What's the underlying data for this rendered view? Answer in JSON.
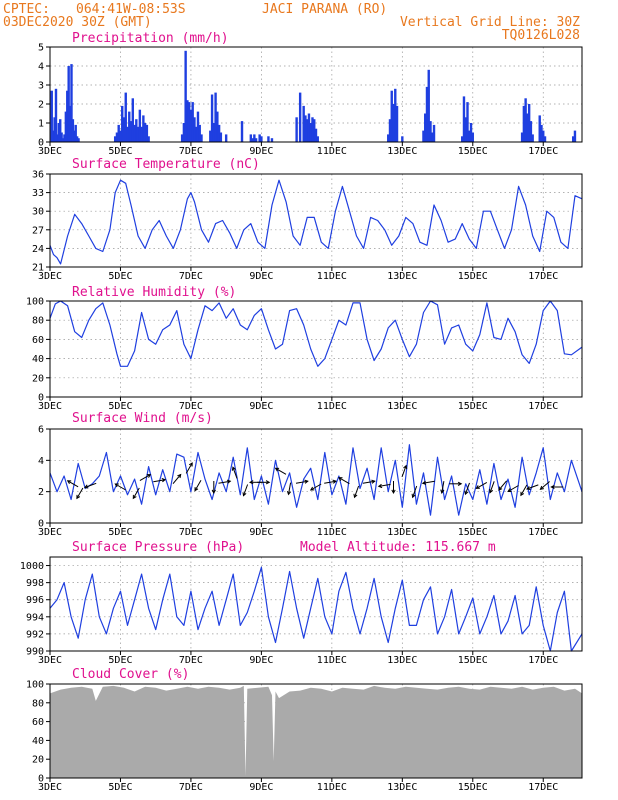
{
  "header": {
    "source": "CPTEC:",
    "coordinates": "064:41W-08:53S",
    "station": "JACI PARANA (RO)",
    "run": "03DEC2020 30Z (GMT)",
    "grid_note": "Vertical Grid Line: 30Z",
    "model_code": "TQ0126L028",
    "color": "#e8781e"
  },
  "colors": {
    "series": "#1f3fe0",
    "title": "#e0118e",
    "cloud": "#aaaaaa",
    "grid": "#999999"
  },
  "x_axis": {
    "tick_labels": [
      "3DEC",
      "5DEC",
      "7DEC",
      "9DEC",
      "11DEC",
      "13DEC",
      "15DEC",
      "17DEC"
    ],
    "tick_days": [
      3,
      5,
      7,
      9,
      11,
      13,
      15,
      17
    ],
    "range_days": [
      3,
      18.1
    ]
  },
  "chart_data": [
    {
      "type": "bar",
      "title": "Precipitation (mm/h)",
      "ylim": [
        0,
        5
      ],
      "yticks": [
        0,
        1,
        2,
        3,
        4,
        5
      ],
      "days": [
        3.05,
        3.09,
        3.13,
        3.17,
        3.21,
        3.25,
        3.29,
        3.33,
        3.37,
        3.41,
        3.45,
        3.49,
        3.53,
        3.57,
        3.61,
        3.65,
        3.69,
        3.73,
        3.77,
        3.81,
        4.85,
        4.9,
        4.95,
        5.0,
        5.05,
        5.1,
        5.15,
        5.2,
        5.25,
        5.3,
        5.35,
        5.4,
        5.45,
        5.5,
        5.55,
        5.6,
        5.65,
        5.7,
        5.75,
        5.8,
        6.75,
        6.8,
        6.85,
        6.9,
        6.95,
        7.0,
        7.05,
        7.1,
        7.15,
        7.2,
        7.25,
        7.3,
        7.55,
        7.6,
        7.65,
        7.7,
        7.75,
        7.8,
        7.85,
        8.0,
        8.45,
        8.7,
        8.75,
        8.8,
        8.85,
        8.95,
        9.0,
        9.2,
        9.3,
        10.0,
        10.1,
        10.2,
        10.25,
        10.3,
        10.35,
        10.4,
        10.45,
        10.5,
        10.55,
        10.6,
        12.6,
        12.65,
        12.7,
        12.75,
        12.8,
        12.85,
        13.0,
        13.6,
        13.65,
        13.7,
        13.75,
        13.8,
        13.85,
        13.9,
        14.7,
        14.75,
        14.8,
        14.85,
        14.9,
        14.95,
        15.0,
        16.4,
        16.45,
        16.5,
        16.55,
        16.6,
        16.65,
        16.7,
        16.9,
        16.95,
        17.0,
        17.05,
        17.85,
        17.9
      ],
      "values": [
        2.7,
        0.6,
        1.3,
        2.8,
        0.4,
        1.0,
        1.2,
        0.5,
        0.2,
        0.4,
        1.6,
        2.7,
        4.0,
        1.9,
        4.1,
        1.2,
        0.6,
        0.9,
        0.3,
        0.2,
        0.3,
        0.5,
        0.9,
        0.6,
        1.9,
        1.3,
        2.6,
        0.8,
        1.6,
        1.1,
        2.3,
        0.9,
        1.2,
        0.8,
        1.7,
        0.8,
        1.4,
        1.0,
        0.9,
        0.3,
        0.4,
        1.0,
        4.8,
        2.2,
        2.1,
        1.7,
        2.1,
        1.3,
        0.8,
        1.6,
        0.9,
        0.4,
        0.6,
        2.5,
        1.0,
        2.6,
        1.6,
        0.9,
        0.5,
        0.4,
        1.1,
        0.4,
        0.2,
        0.4,
        0.2,
        0.4,
        0.3,
        0.3,
        0.2,
        1.3,
        2.6,
        1.9,
        1.4,
        1.2,
        1.5,
        1.0,
        1.3,
        1.2,
        0.7,
        0.3,
        0.4,
        1.2,
        2.7,
        2.0,
        2.8,
        1.9,
        0.3,
        0.6,
        1.5,
        2.9,
        3.8,
        1.1,
        0.5,
        0.9,
        0.3,
        2.4,
        1.3,
        2.1,
        0.6,
        1.0,
        0.5,
        0.5,
        1.9,
        2.3,
        1.5,
        2.0,
        1.1,
        0.4,
        1.4,
        0.9,
        0.6,
        0.3,
        0.3,
        0.6
      ]
    },
    {
      "type": "line",
      "title": "Surface Temperature (nC)",
      "ylim": [
        21,
        36
      ],
      "yticks": [
        21,
        24,
        27,
        30,
        33,
        36
      ],
      "days": [
        3,
        3.1,
        3.2,
        3.3,
        3.5,
        3.7,
        3.9,
        4.1,
        4.3,
        4.5,
        4.7,
        4.85,
        5.0,
        5.15,
        5.3,
        5.5,
        5.7,
        5.9,
        6.1,
        6.3,
        6.5,
        6.7,
        6.9,
        7.0,
        7.1,
        7.3,
        7.5,
        7.7,
        7.9,
        8.1,
        8.3,
        8.5,
        8.7,
        8.9,
        9.1,
        9.3,
        9.5,
        9.7,
        9.9,
        10.1,
        10.3,
        10.5,
        10.7,
        10.9,
        11.1,
        11.3,
        11.5,
        11.7,
        11.9,
        12.1,
        12.3,
        12.5,
        12.7,
        12.9,
        13.1,
        13.3,
        13.5,
        13.7,
        13.9,
        14.1,
        14.3,
        14.5,
        14.7,
        14.9,
        15.1,
        15.3,
        15.5,
        15.7,
        15.9,
        16.1,
        16.3,
        16.5,
        16.7,
        16.9,
        17.1,
        17.3,
        17.5,
        17.7,
        17.9,
        18.1
      ],
      "values": [
        24.5,
        23.0,
        22.5,
        21.5,
        26,
        29.5,
        28,
        26,
        24,
        23.5,
        27,
        33,
        35,
        34.5,
        31,
        26,
        24,
        27,
        28.5,
        26,
        24,
        27,
        32,
        33,
        31.5,
        27,
        25,
        28,
        28.5,
        26.5,
        24,
        27,
        28,
        25,
        24,
        31,
        35,
        31.5,
        26,
        24.5,
        29,
        29,
        25,
        24,
        30,
        34,
        30,
        26,
        24,
        29,
        28.5,
        27,
        24.5,
        26,
        29,
        28,
        25,
        24.5,
        31,
        28.5,
        25,
        25.5,
        28,
        25.5,
        24,
        30,
        30,
        27,
        24,
        27,
        34,
        31,
        26,
        23.5,
        30,
        29,
        25,
        24,
        32.5,
        32
      ]
    },
    {
      "type": "line",
      "title": "Relative Humidity (%)",
      "ylim": [
        0,
        100
      ],
      "yticks": [
        0,
        20,
        40,
        60,
        80,
        100
      ],
      "days": [
        3,
        3.15,
        3.3,
        3.5,
        3.7,
        3.9,
        4.1,
        4.3,
        4.5,
        4.7,
        4.9,
        5.0,
        5.2,
        5.4,
        5.6,
        5.8,
        6.0,
        6.2,
        6.4,
        6.6,
        6.8,
        7.0,
        7.2,
        7.4,
        7.6,
        7.8,
        8.0,
        8.2,
        8.4,
        8.6,
        8.8,
        9.0,
        9.2,
        9.4,
        9.6,
        9.8,
        10.0,
        10.2,
        10.4,
        10.6,
        10.8,
        11.0,
        11.2,
        11.4,
        11.6,
        11.8,
        12.0,
        12.2,
        12.4,
        12.6,
        12.8,
        13.0,
        13.2,
        13.4,
        13.6,
        13.8,
        14.0,
        14.2,
        14.4,
        14.6,
        14.8,
        15.0,
        15.2,
        15.4,
        15.6,
        15.8,
        16.0,
        16.2,
        16.4,
        16.6,
        16.8,
        17.0,
        17.2,
        17.4,
        17.6,
        17.8,
        18.1
      ],
      "values": [
        82,
        97,
        100,
        95,
        68,
        62,
        80,
        92,
        98,
        75,
        45,
        32,
        32,
        48,
        88,
        60,
        55,
        70,
        75,
        90,
        55,
        40,
        70,
        95,
        90,
        98,
        82,
        92,
        75,
        70,
        85,
        92,
        70,
        50,
        55,
        90,
        92,
        75,
        50,
        32,
        40,
        60,
        80,
        75,
        98,
        98,
        60,
        38,
        50,
        72,
        80,
        60,
        42,
        55,
        88,
        100,
        96,
        55,
        72,
        75,
        55,
        48,
        65,
        98,
        62,
        60,
        82,
        68,
        44,
        35,
        55,
        90,
        100,
        90,
        45,
        44,
        52
      ]
    },
    {
      "type": "line",
      "title": "Surface Wind (m/s)",
      "ylim": [
        0,
        6
      ],
      "yticks": [
        0,
        2,
        4,
        6
      ],
      "days": [
        3,
        3.2,
        3.4,
        3.6,
        3.8,
        4.0,
        4.2,
        4.4,
        4.6,
        4.8,
        5.0,
        5.2,
        5.4,
        5.6,
        5.8,
        6.0,
        6.2,
        6.4,
        6.6,
        6.8,
        7.0,
        7.2,
        7.4,
        7.6,
        7.8,
        8.0,
        8.2,
        8.4,
        8.6,
        8.8,
        9.0,
        9.2,
        9.4,
        9.6,
        9.8,
        10.0,
        10.2,
        10.4,
        10.6,
        10.8,
        11.0,
        11.2,
        11.4,
        11.6,
        11.8,
        12.0,
        12.2,
        12.4,
        12.6,
        12.8,
        13.0,
        13.2,
        13.4,
        13.6,
        13.8,
        14.0,
        14.2,
        14.4,
        14.6,
        14.8,
        15.0,
        15.2,
        15.4,
        15.6,
        15.8,
        16.0,
        16.2,
        16.4,
        16.6,
        16.8,
        17.0,
        17.2,
        17.4,
        17.6,
        17.8,
        18.1
      ],
      "values": [
        3.2,
        2.0,
        3.0,
        1.5,
        3.8,
        2.2,
        2.5,
        3.0,
        4.5,
        2.0,
        3.0,
        1.8,
        2.8,
        1.2,
        3.6,
        1.8,
        3.4,
        2.0,
        4.4,
        4.2,
        2.0,
        4.5,
        2.8,
        1.5,
        3.2,
        2.0,
        4.2,
        1.8,
        4.8,
        1.5,
        3.0,
        1.2,
        4.0,
        2.0,
        3.2,
        1.0,
        2.8,
        3.5,
        1.5,
        4.5,
        1.8,
        3.0,
        1.2,
        4.8,
        2.2,
        3.5,
        1.5,
        4.8,
        2.0,
        4.0,
        1.0,
        5.0,
        1.2,
        3.2,
        0.5,
        4.2,
        1.5,
        3.0,
        0.5,
        2.5,
        1.5,
        3.4,
        1.2,
        3.8,
        1.5,
        2.8,
        1.0,
        4.2,
        1.8,
        3.2,
        4.8,
        1.5,
        3.2,
        2.0,
        4.0,
        2.0
      ],
      "arrows": [
        {
          "day": 3.65,
          "speed": 2.5,
          "dir": 300
        },
        {
          "day": 3.85,
          "speed": 1.9,
          "dir": 210
        },
        {
          "day": 4.15,
          "speed": 2.4,
          "dir": 250
        },
        {
          "day": 5.0,
          "speed": 2.3,
          "dir": 300
        },
        {
          "day": 5.45,
          "speed": 1.9,
          "dir": 210
        },
        {
          "day": 5.7,
          "speed": 2.9,
          "dir": 60
        },
        {
          "day": 6.1,
          "speed": 2.7,
          "dir": 80
        },
        {
          "day": 6.6,
          "speed": 2.8,
          "dir": 40
        },
        {
          "day": 6.95,
          "speed": 3.5,
          "dir": 30
        },
        {
          "day": 7.2,
          "speed": 2.4,
          "dir": 210
        },
        {
          "day": 7.65,
          "speed": 2.3,
          "dir": 180
        },
        {
          "day": 7.95,
          "speed": 2.6,
          "dir": 80
        },
        {
          "day": 8.25,
          "speed": 3.2,
          "dir": 340
        },
        {
          "day": 8.55,
          "speed": 2.1,
          "dir": 200
        },
        {
          "day": 8.85,
          "speed": 2.6,
          "dir": 270
        },
        {
          "day": 9.05,
          "speed": 2.6,
          "dir": 90
        },
        {
          "day": 9.55,
          "speed": 3.3,
          "dir": 300
        },
        {
          "day": 9.8,
          "speed": 2.2,
          "dir": 190
        },
        {
          "day": 10.15,
          "speed": 2.6,
          "dir": 80
        },
        {
          "day": 10.55,
          "speed": 2.3,
          "dir": 240
        },
        {
          "day": 10.95,
          "speed": 2.6,
          "dir": 80
        },
        {
          "day": 11.35,
          "speed": 2.7,
          "dir": 300
        },
        {
          "day": 11.7,
          "speed": 2.0,
          "dir": 200
        },
        {
          "day": 12.05,
          "speed": 2.6,
          "dir": 80
        },
        {
          "day": 12.5,
          "speed": 2.4,
          "dir": 260
        },
        {
          "day": 12.75,
          "speed": 2.3,
          "dir": 180
        },
        {
          "day": 13.05,
          "speed": 3.3,
          "dir": 20
        },
        {
          "day": 13.35,
          "speed": 2.0,
          "dir": 200
        },
        {
          "day": 13.75,
          "speed": 2.6,
          "dir": 260
        },
        {
          "day": 14.15,
          "speed": 2.3,
          "dir": 190
        },
        {
          "day": 14.5,
          "speed": 2.5,
          "dir": 90
        },
        {
          "day": 14.85,
          "speed": 2.2,
          "dir": 200
        },
        {
          "day": 15.25,
          "speed": 2.4,
          "dir": 240
        },
        {
          "day": 15.55,
          "speed": 2.3,
          "dir": 200
        },
        {
          "day": 15.85,
          "speed": 2.4,
          "dir": 220
        },
        {
          "day": 16.15,
          "speed": 2.2,
          "dir": 240
        },
        {
          "day": 16.45,
          "speed": 2.1,
          "dir": 210
        },
        {
          "day": 16.7,
          "speed": 2.3,
          "dir": 250
        },
        {
          "day": 17.05,
          "speed": 2.4,
          "dir": 230
        },
        {
          "day": 17.4,
          "speed": 2.3,
          "dir": 270
        }
      ]
    },
    {
      "type": "line",
      "title": "Surface Pressure (hPa)",
      "annotation": "Model Altitude: 115.667 m",
      "ylim": [
        990,
        1001
      ],
      "yticks": [
        990,
        992,
        994,
        996,
        998,
        1000
      ],
      "days": [
        3,
        3.2,
        3.4,
        3.6,
        3.8,
        4.0,
        4.2,
        4.4,
        4.6,
        4.8,
        5.0,
        5.2,
        5.4,
        5.6,
        5.8,
        6.0,
        6.2,
        6.4,
        6.6,
        6.8,
        7.0,
        7.2,
        7.4,
        7.6,
        7.8,
        8.0,
        8.2,
        8.4,
        8.6,
        8.8,
        9.0,
        9.2,
        9.4,
        9.6,
        9.8,
        10.0,
        10.2,
        10.4,
        10.6,
        10.8,
        11.0,
        11.2,
        11.4,
        11.6,
        11.8,
        12.0,
        12.2,
        12.4,
        12.6,
        12.8,
        13.0,
        13.2,
        13.4,
        13.6,
        13.8,
        14.0,
        14.2,
        14.4,
        14.6,
        14.8,
        15.0,
        15.2,
        15.4,
        15.6,
        15.8,
        16.0,
        16.2,
        16.4,
        16.6,
        16.8,
        17.0,
        17.2,
        17.4,
        17.6,
        17.8,
        18.1
      ],
      "values": [
        995,
        996,
        998,
        994,
        991.5,
        996,
        999,
        994,
        992,
        995,
        997,
        993,
        996,
        999,
        995,
        992.5,
        996,
        999,
        994,
        993,
        997,
        992.5,
        995,
        997,
        993,
        996,
        999,
        993,
        994.5,
        997,
        999.8,
        994,
        991,
        995,
        999.3,
        995,
        991.5,
        995,
        998.5,
        994,
        992,
        997,
        999.2,
        995,
        992,
        995,
        998.5,
        994,
        991,
        995,
        998.3,
        993,
        993,
        996,
        997.5,
        992,
        994,
        997.2,
        992,
        994,
        996.2,
        992,
        994,
        996.5,
        992,
        993.5,
        996.5,
        992,
        993,
        997.5,
        993,
        990,
        994.5,
        997,
        990,
        992
      ]
    },
    {
      "type": "area",
      "title": "Cloud Cover (%)",
      "ylim": [
        0,
        100
      ],
      "yticks": [
        0,
        20,
        40,
        60,
        80,
        100
      ],
      "days": [
        3,
        3.3,
        3.6,
        3.9,
        4.2,
        4.3,
        4.5,
        4.8,
        5.1,
        5.4,
        5.7,
        6.0,
        6.3,
        6.6,
        6.9,
        7.2,
        7.5,
        7.8,
        8.1,
        8.4,
        8.5,
        8.55,
        8.6,
        8.9,
        9.2,
        9.3,
        9.35,
        9.4,
        9.5,
        9.8,
        10.1,
        10.4,
        10.7,
        11.0,
        11.3,
        11.6,
        11.9,
        12.2,
        12.5,
        12.8,
        13.1,
        13.4,
        13.7,
        14.0,
        14.3,
        14.6,
        14.9,
        15.2,
        15.5,
        15.8,
        16.1,
        16.4,
        16.7,
        17.0,
        17.3,
        17.6,
        17.9,
        18.1
      ],
      "values": [
        90,
        94,
        96,
        97,
        95,
        82,
        97,
        98,
        96,
        92,
        97,
        96,
        93,
        95,
        97,
        95,
        97,
        96,
        94,
        96,
        98,
        2,
        95,
        96,
        97,
        88,
        18,
        92,
        85,
        92,
        93,
        96,
        95,
        92,
        96,
        95,
        94,
        98,
        96,
        95,
        97,
        96,
        95,
        94,
        96,
        97,
        95,
        94,
        97,
        96,
        95,
        97,
        94,
        96,
        97,
        93,
        95,
        90
      ]
    }
  ]
}
